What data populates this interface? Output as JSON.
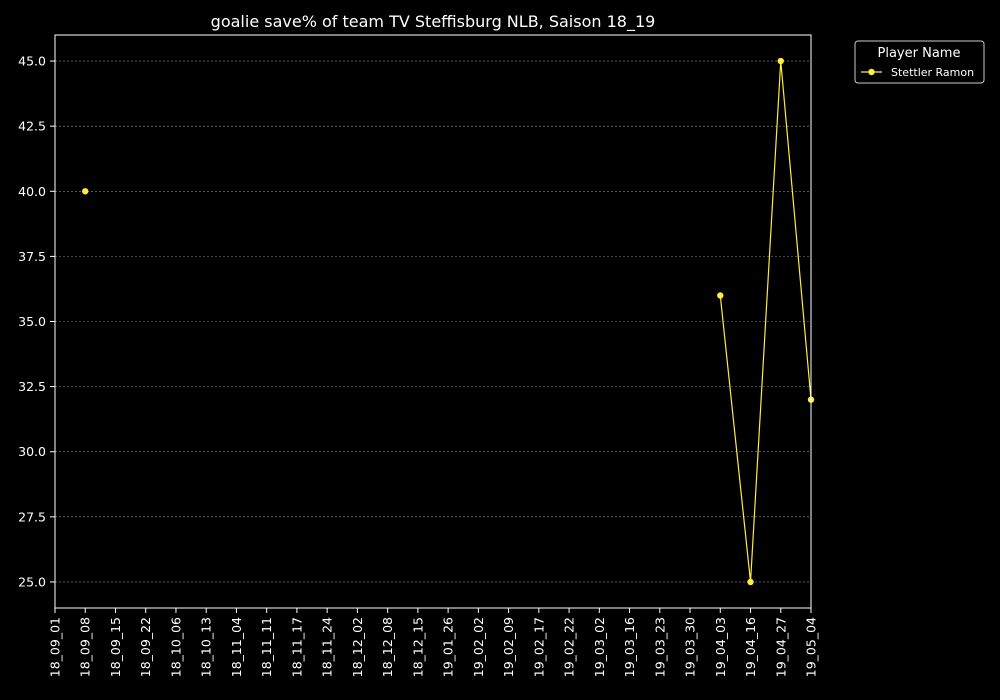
{
  "chart_data": {
    "type": "line",
    "title": "goalie save% of team TV Steffisburg NLB, Saison 18_19",
    "xlabel": "",
    "ylabel": "",
    "categories": [
      "18_09_01",
      "18_09_08",
      "18_09_15",
      "18_09_22",
      "18_10_06",
      "18_10_13",
      "18_11_04",
      "18_11_11",
      "18_11_17",
      "18_11_24",
      "18_12_02",
      "18_12_08",
      "18_12_15",
      "19_01_26",
      "19_02_02",
      "19_02_09",
      "19_02_17",
      "19_02_22",
      "19_03_02",
      "19_03_16",
      "19_03_23",
      "19_03_30",
      "19_04_03",
      "19_04_16",
      "19_04_27",
      "19_05_04"
    ],
    "y_ticks": [
      "25.0",
      "27.5",
      "30.0",
      "32.5",
      "35.0",
      "37.5",
      "40.0",
      "42.5",
      "45.0"
    ],
    "ylim": [
      24.0,
      46.0
    ],
    "grid": true,
    "legend": {
      "title": "Player Name",
      "placement": "top-right, outside plot"
    },
    "series": [
      {
        "name": "Stettler Ramon",
        "color": "#ffed3a",
        "values": [
          null,
          40.0,
          null,
          null,
          null,
          null,
          null,
          null,
          null,
          null,
          null,
          null,
          null,
          null,
          null,
          null,
          null,
          null,
          null,
          null,
          null,
          null,
          36.0,
          25.0,
          45.0,
          32.0
        ]
      }
    ],
    "colors": {
      "background": "#000000",
      "axes": "#ffffff",
      "grid": "#8a8a8a"
    }
  }
}
